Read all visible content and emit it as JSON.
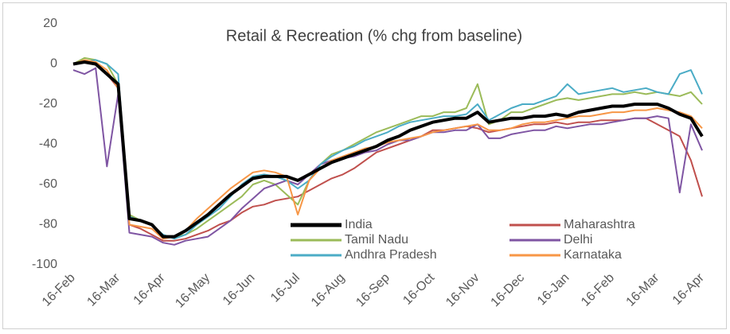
{
  "chart_data": {
    "type": "line",
    "title": "Retail & Recreation (% chg from baseline)",
    "categories": [
      "16-Feb",
      null,
      null,
      null,
      "16-Mar",
      null,
      null,
      null,
      "16-Apr",
      null,
      null,
      null,
      "16-May",
      null,
      null,
      null,
      "16-Jun",
      null,
      null,
      null,
      "16-Jul",
      null,
      null,
      null,
      "16-Aug",
      null,
      null,
      null,
      "16-Sep",
      null,
      null,
      null,
      "16-Oct",
      null,
      null,
      null,
      "16-Nov",
      null,
      null,
      null,
      "16-Dec",
      null,
      null,
      null,
      "16-Jan",
      null,
      null,
      null,
      "16-Feb",
      null,
      null,
      null,
      "16-Mar",
      null,
      null,
      null,
      "16-Apr"
    ],
    "ylim": [
      -100,
      20
    ],
    "yticks": [
      -100,
      -80,
      -60,
      -40,
      -20,
      0,
      20
    ],
    "grid": false,
    "legend": "bottom-center",
    "series": [
      {
        "name": "India",
        "color": "#000000",
        "values": [
          0,
          1,
          0,
          -5,
          -10,
          -77,
          -78,
          -80,
          -86,
          -86,
          -83,
          -79,
          -75,
          -70,
          -65,
          -61,
          -57,
          -56,
          -56,
          -56,
          -58,
          -55,
          -52,
          -49,
          -47,
          -45,
          -43,
          -41,
          -38,
          -36,
          -33,
          -31,
          -29,
          -28,
          -27,
          -27,
          -24,
          -29,
          -28,
          -27,
          -27,
          -26,
          -26,
          -25,
          -26,
          -24,
          -23,
          -22,
          -21,
          -21,
          -20,
          -20,
          -20,
          -22,
          -25,
          -27,
          -36
        ]
      },
      {
        "name": "Maharashtra",
        "color": "#c0504d",
        "values": [
          0,
          1,
          0,
          -5,
          -12,
          -80,
          -82,
          -85,
          -88,
          -88,
          -87,
          -85,
          -83,
          -80,
          -78,
          -74,
          -71,
          -70,
          -68,
          -67,
          -66,
          -63,
          -60,
          -57,
          -55,
          -52,
          -48,
          -44,
          -42,
          -40,
          -38,
          -36,
          -33,
          -33,
          -32,
          -31,
          -32,
          -34,
          -33,
          -32,
          -31,
          -30,
          -30,
          -29,
          -30,
          -29,
          -29,
          -28,
          -28,
          -28,
          -27,
          -27,
          -30,
          -33,
          -36,
          -48,
          -66
        ]
      },
      {
        "name": "Tamil Nadu",
        "color": "#9bbb59",
        "values": [
          0,
          3,
          2,
          0,
          -10,
          -75,
          -78,
          -80,
          -86,
          -86,
          -85,
          -82,
          -78,
          -74,
          -70,
          -66,
          -60,
          -58,
          -60,
          -65,
          -70,
          -58,
          -50,
          -45,
          -43,
          -40,
          -37,
          -34,
          -32,
          -30,
          -28,
          -26,
          -26,
          -24,
          -24,
          -22,
          -10,
          -30,
          -28,
          -24,
          -24,
          -22,
          -20,
          -18,
          -17,
          -18,
          -17,
          -16,
          -15,
          -15,
          -14,
          -15,
          -14,
          -15,
          -16,
          -14,
          -20
        ]
      },
      {
        "name": "Delhi",
        "color": "#7f55a3",
        "values": [
          -3,
          -5,
          -2,
          -51,
          -15,
          -84,
          -85,
          -86,
          -89,
          -90,
          -88,
          -87,
          -86,
          -82,
          -78,
          -72,
          -67,
          -62,
          -60,
          -58,
          -60,
          -55,
          -50,
          -48,
          -47,
          -46,
          -44,
          -43,
          -40,
          -38,
          -38,
          -36,
          -34,
          -34,
          -33,
          -33,
          -30,
          -37,
          -37,
          -35,
          -34,
          -33,
          -33,
          -31,
          -32,
          -31,
          -30,
          -30,
          -29,
          -28,
          -27,
          -27,
          -26,
          -27,
          -64,
          -30,
          -43
        ]
      },
      {
        "name": "Andhra Pradesh",
        "color": "#4bacc6",
        "values": [
          0,
          1,
          2,
          0,
          -5,
          -76,
          -78,
          -80,
          -85,
          -87,
          -85,
          -80,
          -76,
          -72,
          -66,
          -60,
          -56,
          -55,
          -56,
          -58,
          -62,
          -58,
          -50,
          -46,
          -43,
          -41,
          -38,
          -36,
          -34,
          -31,
          -29,
          -28,
          -27,
          -26,
          -26,
          -25,
          -20,
          -28,
          -25,
          -22,
          -20,
          -20,
          -18,
          -16,
          -10,
          -15,
          -14,
          -13,
          -12,
          -14,
          -13,
          -12,
          -14,
          -15,
          -5,
          -3,
          -15
        ]
      },
      {
        "name": "Karnataka",
        "color": "#f79646",
        "values": [
          0,
          2,
          1,
          -3,
          -12,
          -80,
          -81,
          -82,
          -87,
          -86,
          -83,
          -77,
          -72,
          -67,
          -62,
          -58,
          -54,
          -53,
          -54,
          -56,
          -75,
          -58,
          -52,
          -48,
          -46,
          -44,
          -42,
          -41,
          -39,
          -38,
          -37,
          -36,
          -34,
          -33,
          -32,
          -31,
          -30,
          -33,
          -33,
          -32,
          -30,
          -29,
          -29,
          -28,
          -27,
          -26,
          -26,
          -25,
          -24,
          -24,
          -23,
          -23,
          -22,
          -23,
          -24,
          -26,
          -32
        ]
      }
    ]
  }
}
